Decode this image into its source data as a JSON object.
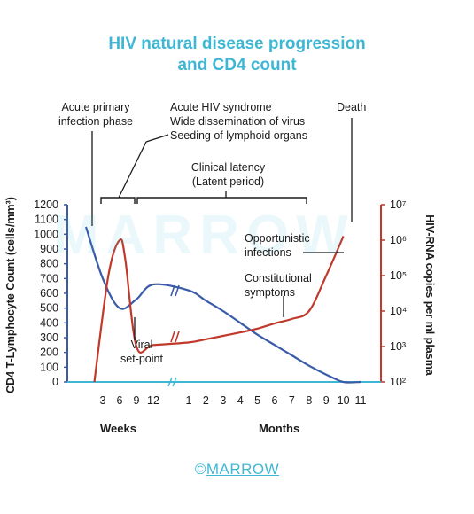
{
  "title_line1": "HIV natural disease progression",
  "title_line2": "and CD4 count",
  "watermark": "MARROW",
  "footer": {
    "copyright": "©",
    "brand": "MARROW"
  },
  "annotations": {
    "acute_primary_1": "Acute primary",
    "acute_primary_2": "infection phase",
    "acute_syndrome_1": "Acute HIV syndrome",
    "acute_syndrome_2": "Wide dissemination of virus",
    "acute_syndrome_3": "Seeding of lymphoid organs",
    "death": "Death",
    "latency_1": "Clinical latency",
    "latency_2": "(Latent period)",
    "opportunistic_1": "Opportunistic",
    "opportunistic_2": "infections",
    "constitutional_1": "Constitutional",
    "constitutional_2": "symptoms",
    "viral_1": "Viral",
    "viral_2": "set-point"
  },
  "chart_data": {
    "type": "line",
    "xlabel_weeks": "Weeks",
    "xlabel_months": "Months",
    "ylabel_left": "CD4 T-Lymphocyte Count (cells/mm³)",
    "ylabel_right": "HIV-RNA copies per ml plasma",
    "left_axis": {
      "ylim": [
        0,
        1200
      ],
      "ticks": [
        "1200",
        "1100",
        "1000",
        "900",
        "800",
        "700",
        "600",
        "500",
        "400",
        "300",
        "200",
        "100",
        "0"
      ]
    },
    "right_axis": {
      "ylim": [
        "10^2",
        "10^7"
      ],
      "ticks": [
        "10⁷",
        "10⁶",
        "10⁵",
        "10⁴",
        "10³",
        "10²"
      ]
    },
    "x_ticks_weeks": [
      "3",
      "6",
      "9",
      "12"
    ],
    "x_ticks_months": [
      "1",
      "2",
      "3",
      "4",
      "5",
      "6",
      "7",
      "8",
      "9",
      "10",
      "11"
    ],
    "series": [
      {
        "name": "CD4 T-Lymphocyte Count",
        "color": "#3a5ba8",
        "axis": "left",
        "points": [
          [
            "0 weeks",
            1050
          ],
          [
            "3 weeks",
            700
          ],
          [
            "6 weeks",
            500
          ],
          [
            "9 weeks",
            560
          ],
          [
            "12 weeks",
            660
          ],
          [
            "1 month",
            620
          ],
          [
            "2 months",
            550
          ],
          [
            "3 months",
            480
          ],
          [
            "4 months",
            400
          ],
          [
            "5 months",
            320
          ],
          [
            "6 months",
            250
          ],
          [
            "7 months",
            180
          ],
          [
            "8 months",
            110
          ],
          [
            "9 months",
            50
          ],
          [
            "10 months",
            0
          ],
          [
            "11 months",
            0
          ]
        ]
      },
      {
        "name": "HIV-RNA copies",
        "color": "#c0392b",
        "axis": "right",
        "points": [
          [
            "1.5 weeks",
            100
          ],
          [
            "4 weeks",
            100000
          ],
          [
            "6 weeks",
            1000000
          ],
          [
            "7 weeks",
            300000
          ],
          [
            "9 weeks",
            1000
          ],
          [
            "12 weeks",
            1100
          ],
          [
            "1 month",
            1300
          ],
          [
            "2 months",
            1600
          ],
          [
            "3 months",
            2000
          ],
          [
            "4 months",
            2500
          ],
          [
            "5 months",
            3200
          ],
          [
            "6 months",
            4500
          ],
          [
            "7 months",
            6000
          ],
          [
            "8 months",
            10000
          ],
          [
            "9 months",
            100000
          ],
          [
            "10 months",
            1300000
          ]
        ]
      }
    ]
  }
}
